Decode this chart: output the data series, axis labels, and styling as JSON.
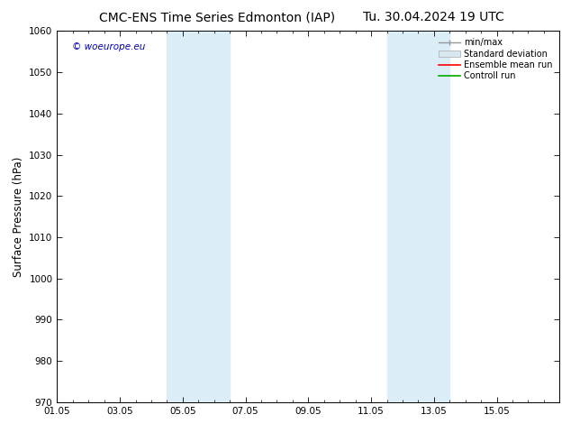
{
  "title_left": "CMC-ENS Time Series Edmonton (IAP)",
  "title_right": "Tu. 30.04.2024 19 UTC",
  "ylabel": "Surface Pressure (hPa)",
  "ylim": [
    970,
    1060
  ],
  "yticks": [
    970,
    980,
    990,
    1000,
    1010,
    1020,
    1030,
    1040,
    1050,
    1060
  ],
  "xlim_days": [
    0,
    16
  ],
  "xtick_labels": [
    "01.05",
    "03.05",
    "05.05",
    "07.05",
    "09.05",
    "11.05",
    "13.05",
    "15.05"
  ],
  "xtick_positions": [
    0,
    2,
    4,
    6,
    8,
    10,
    12,
    14
  ],
  "shade_bands": [
    {
      "xmin": 3.5,
      "xmax": 5.5
    },
    {
      "xmin": 10.5,
      "xmax": 12.5
    }
  ],
  "shade_color": "#dbeef8",
  "watermark": "© woeurope.eu",
  "watermark_color": "#0000bb",
  "legend_labels": [
    "min/max",
    "Standard deviation",
    "Ensemble mean run",
    "Controll run"
  ],
  "legend_colors_line": [
    "#999999",
    "#bbbbbb",
    "#ff0000",
    "#00aa00"
  ],
  "background_color": "#ffffff",
  "title_fontsize": 10,
  "tick_fontsize": 7.5,
  "ylabel_fontsize": 8.5
}
